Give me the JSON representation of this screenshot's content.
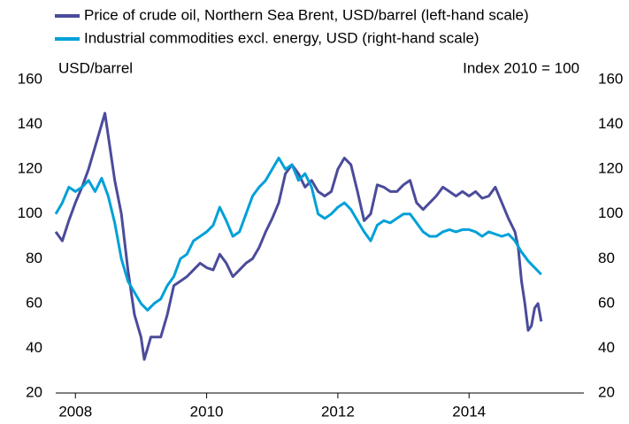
{
  "chart_data": {
    "type": "line",
    "ylabel": "USD/barrel",
    "y2label": "Index 2010 = 100",
    "xlim": [
      2007.7,
      2015.75
    ],
    "xticks": [
      2008,
      2010,
      2012,
      2014
    ],
    "ylim": [
      20,
      160
    ],
    "yticks": [
      20,
      40,
      60,
      80,
      100,
      120,
      140,
      160
    ],
    "y2lim": [
      20,
      160
    ],
    "y2ticks": [
      20,
      40,
      60,
      80,
      100,
      120,
      140,
      160
    ],
    "legend": "top-left",
    "grid": false,
    "series": [
      {
        "name": "Price of crude oil, Northern Sea Brent, USD/barrel (left-hand scale)",
        "color": "#4b4b9b",
        "x": [
          2007.7,
          2007.8,
          2007.9,
          2008.0,
          2008.1,
          2008.2,
          2008.3,
          2008.4,
          2008.45,
          2008.5,
          2008.6,
          2008.7,
          2008.8,
          2008.9,
          2009.0,
          2009.05,
          2009.15,
          2009.3,
          2009.4,
          2009.5,
          2009.6,
          2009.7,
          2009.8,
          2009.9,
          2010.0,
          2010.1,
          2010.2,
          2010.3,
          2010.4,
          2010.5,
          2010.6,
          2010.7,
          2010.8,
          2010.9,
          2011.0,
          2011.1,
          2011.2,
          2011.3,
          2011.4,
          2011.5,
          2011.6,
          2011.7,
          2011.8,
          2011.9,
          2012.0,
          2012.1,
          2012.2,
          2012.3,
          2012.4,
          2012.5,
          2012.6,
          2012.7,
          2012.8,
          2012.9,
          2013.0,
          2013.1,
          2013.2,
          2013.3,
          2013.4,
          2013.5,
          2013.6,
          2013.7,
          2013.8,
          2013.9,
          2014.0,
          2014.1,
          2014.2,
          2014.3,
          2014.4,
          2014.5,
          2014.6,
          2014.7,
          2014.75,
          2014.8,
          2014.85,
          2014.9,
          2014.95,
          2015.0,
          2015.05,
          2015.1
        ],
        "values": [
          92,
          88,
          97,
          105,
          112,
          120,
          130,
          140,
          145,
          135,
          115,
          100,
          75,
          55,
          45,
          35,
          45,
          45,
          55,
          68,
          70,
          72,
          75,
          78,
          76,
          75,
          82,
          78,
          72,
          75,
          78,
          80,
          85,
          92,
          98,
          105,
          118,
          122,
          118,
          112,
          115,
          110,
          108,
          110,
          120,
          125,
          122,
          110,
          97,
          100,
          113,
          112,
          110,
          110,
          113,
          115,
          105,
          102,
          105,
          108,
          112,
          110,
          108,
          110,
          108,
          110,
          107,
          108,
          112,
          105,
          98,
          92,
          85,
          70,
          60,
          48,
          50,
          58,
          60,
          52
        ]
      },
      {
        "name": "Industrial commodities excl. energy, USD (right-hand scale)",
        "color": "#00a0d8",
        "axis": "y2",
        "x": [
          2007.7,
          2007.8,
          2007.9,
          2008.0,
          2008.1,
          2008.2,
          2008.3,
          2008.4,
          2008.5,
          2008.6,
          2008.7,
          2008.8,
          2008.9,
          2009.0,
          2009.1,
          2009.2,
          2009.3,
          2009.4,
          2009.5,
          2009.6,
          2009.7,
          2009.8,
          2009.9,
          2010.0,
          2010.1,
          2010.2,
          2010.3,
          2010.4,
          2010.5,
          2010.6,
          2010.7,
          2010.8,
          2010.9,
          2011.0,
          2011.1,
          2011.2,
          2011.3,
          2011.4,
          2011.5,
          2011.6,
          2011.7,
          2011.8,
          2011.9,
          2012.0,
          2012.1,
          2012.2,
          2012.3,
          2012.4,
          2012.5,
          2012.6,
          2012.7,
          2012.8,
          2012.9,
          2013.0,
          2013.1,
          2013.2,
          2013.3,
          2013.4,
          2013.5,
          2013.6,
          2013.7,
          2013.8,
          2013.9,
          2014.0,
          2014.1,
          2014.2,
          2014.3,
          2014.4,
          2014.5,
          2014.6,
          2014.7,
          2014.8,
          2014.9,
          2015.0,
          2015.1
        ],
        "values": [
          100,
          105,
          112,
          110,
          112,
          115,
          110,
          116,
          108,
          96,
          80,
          70,
          65,
          60,
          57,
          60,
          62,
          68,
          72,
          80,
          82,
          88,
          90,
          92,
          95,
          103,
          97,
          90,
          92,
          100,
          108,
          112,
          115,
          120,
          125,
          120,
          122,
          115,
          118,
          112,
          100,
          98,
          100,
          103,
          105,
          102,
          97,
          92,
          88,
          95,
          97,
          96,
          98,
          100,
          100,
          96,
          92,
          90,
          90,
          92,
          93,
          92,
          93,
          93,
          92,
          90,
          92,
          91,
          90,
          91,
          88,
          83,
          79,
          76,
          73
        ]
      }
    ]
  }
}
